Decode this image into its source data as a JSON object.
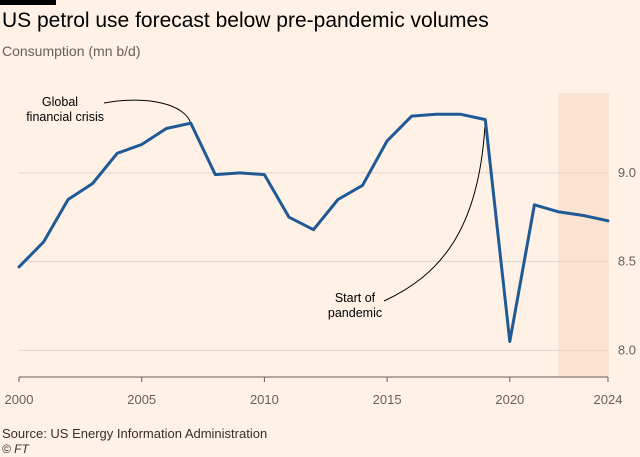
{
  "header": {
    "title": "US petrol use forecast below pre-pandemic volumes",
    "subtitle": "Consumption (mn b/d)"
  },
  "footer": {
    "source": "Source: US Energy Information Administration",
    "credit": "© FT"
  },
  "colors": {
    "background": "#fff1e5",
    "line": "#1f5a96",
    "forecast_band": "#fbe3d1",
    "grid": "#e0d5cb",
    "axis": "#66605c"
  },
  "chart_data": {
    "type": "line",
    "title": "US petrol use forecast below pre-pandemic volumes",
    "ylabel": "Consumption (mn b/d)",
    "xlim": [
      2000,
      2024
    ],
    "ylim": [
      7.85,
      9.45
    ],
    "x_ticks": [
      2000,
      2005,
      2010,
      2015,
      2020,
      2024
    ],
    "y_ticks": [
      8.0,
      8.5,
      9.0
    ],
    "grid": "horizontal",
    "forecast_shading": {
      "from": 2022.0,
      "to": 2024.0
    },
    "series": [
      {
        "x": [
          2000,
          2001,
          2002,
          2003,
          2004,
          2005,
          2006,
          2007,
          2008,
          2009,
          2010,
          2011,
          2012,
          2013,
          2014,
          2015,
          2016,
          2017,
          2018,
          2019,
          2020,
          2021,
          2022,
          2023,
          2024
        ],
        "y": [
          8.47,
          8.61,
          8.85,
          8.94,
          9.11,
          9.16,
          9.25,
          9.28,
          8.99,
          9.0,
          8.99,
          8.75,
          8.68,
          8.85,
          8.93,
          9.18,
          9.32,
          9.33,
          9.33,
          9.3,
          8.05,
          8.82,
          8.78,
          8.76,
          8.73
        ]
      }
    ],
    "annotations": [
      {
        "lines": [
          "Global",
          "financial crisis"
        ],
        "x": 2007,
        "y": 9.28
      },
      {
        "lines": [
          "Start of",
          "pandemic"
        ],
        "x": 2019,
        "y": 9.3
      }
    ]
  }
}
